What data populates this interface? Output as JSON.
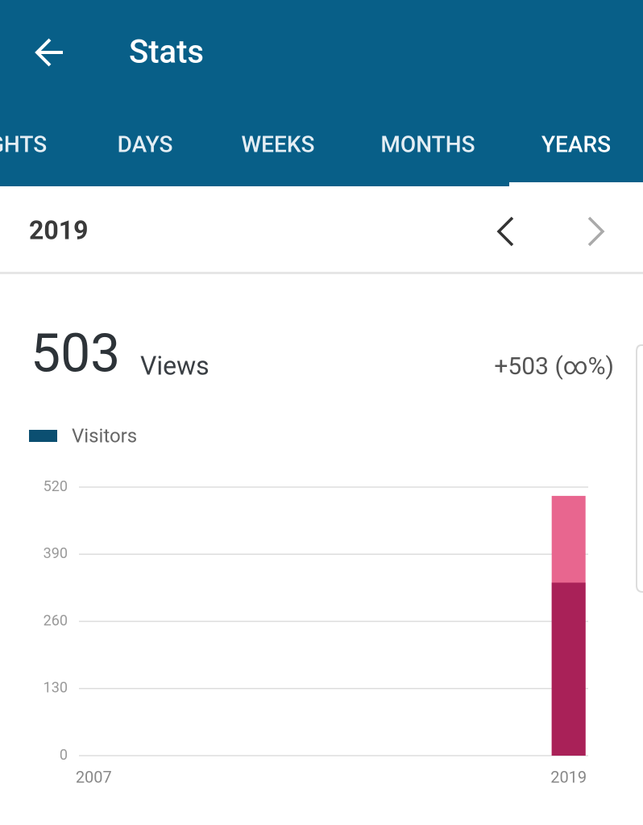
{
  "header": {
    "title": "Stats"
  },
  "tabs": [
    "GHTS",
    "DAYS",
    "WEEKS",
    "MONTHS",
    "YEARS"
  ],
  "active_tab": 4,
  "period": "2019",
  "change": "+503 (∞%)",
  "chart_data": {
    "type": "bar",
    "categories": [
      "2007",
      null,
      null,
      null,
      null,
      null,
      null,
      null,
      null,
      null,
      null,
      null,
      "2019"
    ],
    "series": [
      {
        "name": "Views",
        "color": "#e8668f",
        "values": [
          0,
          0,
          0,
          0,
          0,
          0,
          0,
          0,
          0,
          0,
          0,
          0,
          503
        ]
      },
      {
        "name": "Visitors",
        "color": "#a92158",
        "values": [
          0,
          0,
          0,
          0,
          0,
          0,
          0,
          0,
          0,
          0,
          0,
          0,
          335
        ]
      }
    ],
    "legend_color": "#0b4f71",
    "ylim": [
      0,
      520
    ],
    "yticks": [
      0,
      130,
      260,
      390,
      520
    ],
    "grid": true
  }
}
